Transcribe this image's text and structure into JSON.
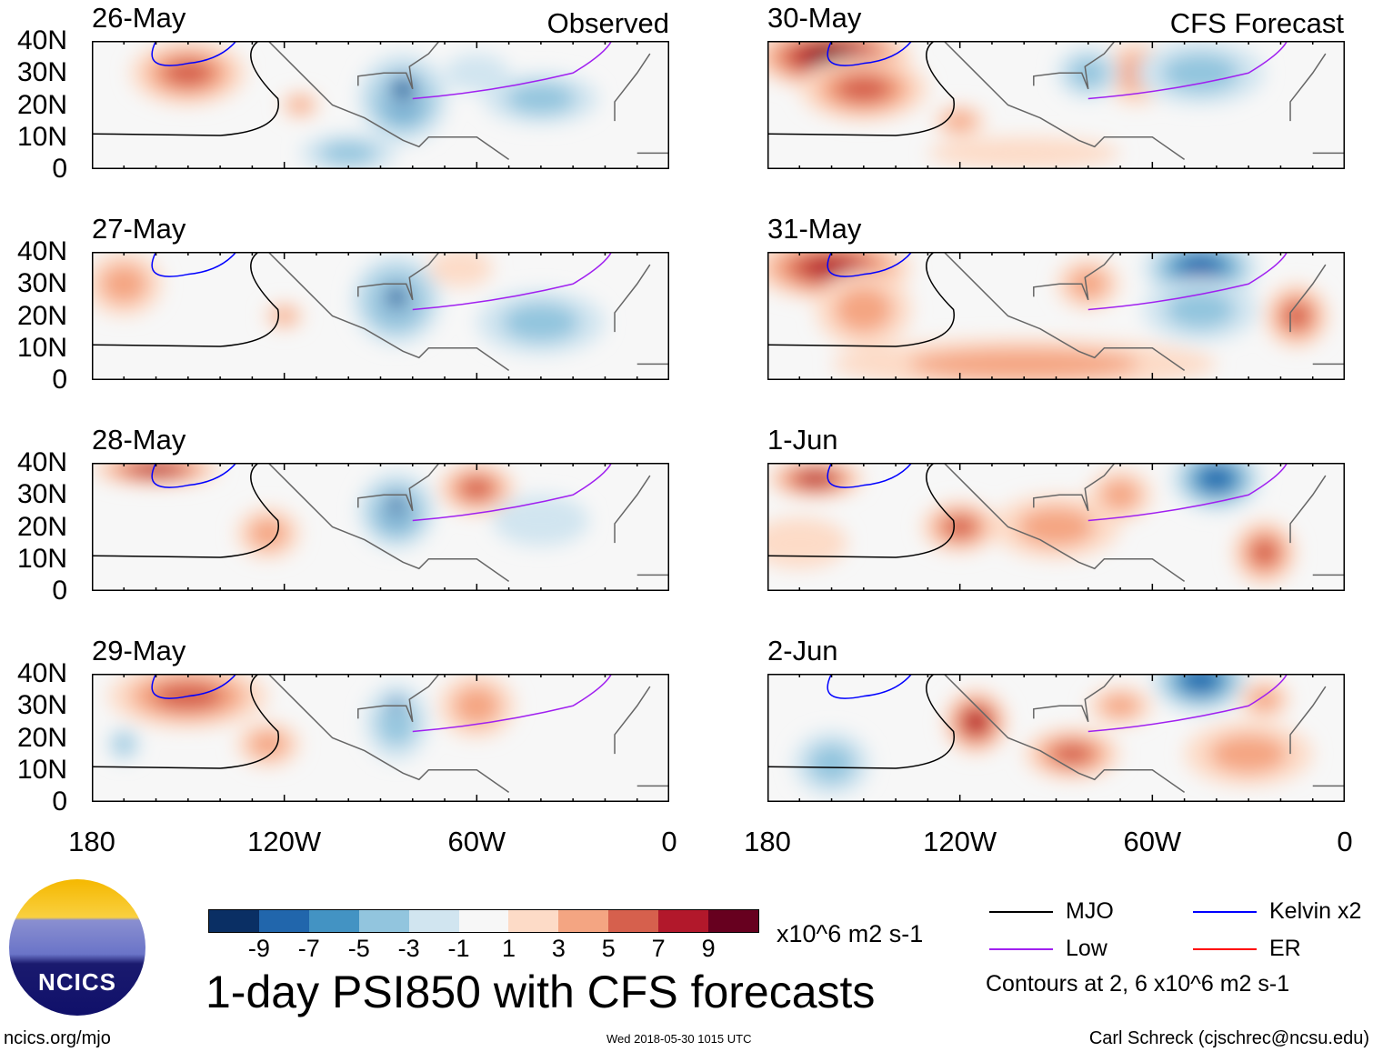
{
  "header": {
    "left_label": "Observed",
    "right_label": "CFS Forecast"
  },
  "lat_ticks": [
    "40N",
    "30N",
    "20N",
    "10N",
    "0"
  ],
  "lon_ticks": [
    "180",
    "120W",
    "60W",
    "0"
  ],
  "panels": [
    {
      "date": "26-May",
      "col": 0,
      "row": 0,
      "blobs": [
        [
          -150,
          30,
          18,
          10,
          8
        ],
        [
          -115,
          20,
          6,
          4,
          7
        ],
        [
          -83,
          22,
          14,
          14,
          2
        ],
        [
          -83,
          25,
          7,
          6,
          0
        ],
        [
          -40,
          22,
          18,
          8,
          3
        ],
        [
          -100,
          5,
          15,
          6,
          3
        ],
        [
          -60,
          30,
          10,
          6,
          4
        ]
      ]
    },
    {
      "date": "27-May",
      "col": 0,
      "row": 1,
      "blobs": [
        [
          -170,
          30,
          12,
          10,
          7
        ],
        [
          -120,
          20,
          6,
          4,
          7
        ],
        [
          -85,
          25,
          14,
          14,
          2
        ],
        [
          -85,
          26,
          6,
          6,
          0
        ],
        [
          -40,
          18,
          20,
          10,
          3
        ],
        [
          -65,
          35,
          10,
          6,
          6
        ]
      ]
    },
    {
      "date": "28-May",
      "col": 0,
      "row": 2,
      "blobs": [
        [
          -160,
          38,
          20,
          5,
          9
        ],
        [
          -125,
          18,
          10,
          8,
          7
        ],
        [
          -85,
          25,
          12,
          12,
          2
        ],
        [
          -85,
          27,
          5,
          5,
          0
        ],
        [
          -60,
          32,
          12,
          8,
          8
        ],
        [
          -40,
          22,
          15,
          8,
          4
        ]
      ]
    },
    {
      "date": "29-May",
      "col": 0,
      "row": 3,
      "blobs": [
        [
          -150,
          33,
          25,
          10,
          8
        ],
        [
          -125,
          18,
          10,
          7,
          7
        ],
        [
          -85,
          25,
          10,
          12,
          3
        ],
        [
          -85,
          30,
          4,
          4,
          1
        ],
        [
          -60,
          30,
          12,
          10,
          7
        ],
        [
          -170,
          18,
          5,
          5,
          3
        ]
      ]
    },
    {
      "date": "30-May",
      "col": 1,
      "row": 0,
      "blobs": [
        [
          -160,
          35,
          25,
          10,
          10
        ],
        [
          -150,
          25,
          20,
          10,
          8
        ],
        [
          -120,
          15,
          8,
          5,
          7
        ],
        [
          -65,
          30,
          10,
          10,
          7
        ],
        [
          -45,
          30,
          20,
          10,
          3
        ],
        [
          -80,
          30,
          10,
          8,
          3
        ],
        [
          -100,
          5,
          30,
          5,
          6
        ]
      ]
    },
    {
      "date": "31-May",
      "col": 1,
      "row": 1,
      "blobs": [
        [
          -160,
          35,
          25,
          10,
          9
        ],
        [
          -150,
          22,
          15,
          12,
          7
        ],
        [
          -45,
          35,
          18,
          10,
          1
        ],
        [
          -45,
          22,
          18,
          10,
          3
        ],
        [
          -100,
          5,
          60,
          8,
          7
        ],
        [
          -80,
          30,
          10,
          8,
          7
        ],
        [
          -15,
          20,
          10,
          10,
          8
        ]
      ]
    },
    {
      "date": "1-Jun",
      "col": 1,
      "row": 2,
      "blobs": [
        [
          -165,
          35,
          15,
          6,
          9
        ],
        [
          -40,
          35,
          14,
          10,
          1
        ],
        [
          -120,
          20,
          12,
          8,
          8
        ],
        [
          -90,
          20,
          20,
          10,
          7
        ],
        [
          -25,
          12,
          10,
          10,
          8
        ],
        [
          -170,
          15,
          15,
          8,
          6
        ],
        [
          -70,
          30,
          10,
          8,
          7
        ]
      ]
    },
    {
      "date": "2-Jun",
      "col": 1,
      "row": 3,
      "blobs": [
        [
          -45,
          38,
          15,
          10,
          1
        ],
        [
          -160,
          12,
          12,
          10,
          3
        ],
        [
          -115,
          25,
          10,
          10,
          9
        ],
        [
          -85,
          15,
          15,
          8,
          8
        ],
        [
          -30,
          15,
          20,
          10,
          7
        ],
        [
          -25,
          32,
          8,
          6,
          7
        ],
        [
          -70,
          30,
          10,
          6,
          7
        ]
      ]
    }
  ],
  "colorbar": {
    "colors": [
      "#0a2f64",
      "#2166ac",
      "#4393c3",
      "#92c5de",
      "#d1e5f0",
      "#f7f7f7",
      "#fddbc7",
      "#f4a582",
      "#d6604d",
      "#b2182b",
      "#67001f"
    ],
    "ticks": [
      "-9",
      "-7",
      "-5",
      "-3",
      "-1",
      "1",
      "3",
      "5",
      "7",
      "9"
    ],
    "units": "x10^6 m2 s-1"
  },
  "title": "1-day PSI850 with CFS forecasts",
  "legend": {
    "items": [
      {
        "label": "MJO",
        "color": "#000000"
      },
      {
        "label": "Kelvin x2",
        "color": "#0000ff"
      },
      {
        "label": "Low",
        "color": "#a020f0"
      },
      {
        "label": "ER",
        "color": "#ff0000"
      }
    ],
    "note": "Contours at 2, 6 x10^6 m2 s-1"
  },
  "logo": {
    "text": "NCICS"
  },
  "footer": {
    "url": "ncics.org/mjo",
    "timestamp": "Wed 2018-05-30 1015 UTC",
    "credit": "Carl Schreck (cjschrec@ncsu.edu)"
  }
}
